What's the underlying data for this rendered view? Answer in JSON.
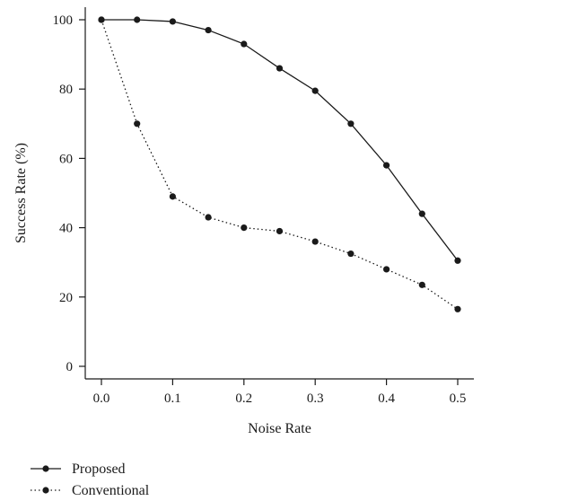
{
  "chart_data": {
    "type": "line",
    "title": "",
    "xlabel": "Noise Rate",
    "ylabel": "Success Rate (%)",
    "xlim": [
      0.0,
      0.5
    ],
    "ylim": [
      0,
      100
    ],
    "x_ticks": [
      "0.0",
      "0.1",
      "0.2",
      "0.3",
      "0.4",
      "0.5"
    ],
    "y_ticks": [
      "0",
      "20",
      "40",
      "60",
      "80",
      "100"
    ],
    "grid": false,
    "legend_position": "bottom-left",
    "x": [
      0.0,
      0.05,
      0.1,
      0.15,
      0.2,
      0.25,
      0.3,
      0.35,
      0.4,
      0.45,
      0.5
    ],
    "series": [
      {
        "name": "Proposed",
        "line_style": "solid",
        "color": "#1a1a1a",
        "values": [
          100,
          100,
          99.5,
          97,
          93,
          86,
          79.5,
          70,
          58,
          44,
          30.5
        ]
      },
      {
        "name": "Conventional",
        "line_style": "dotted",
        "color": "#1a1a1a",
        "values": [
          100,
          70,
          49,
          43,
          40,
          39,
          36,
          32.5,
          28,
          23.5,
          16.5
        ]
      }
    ]
  }
}
